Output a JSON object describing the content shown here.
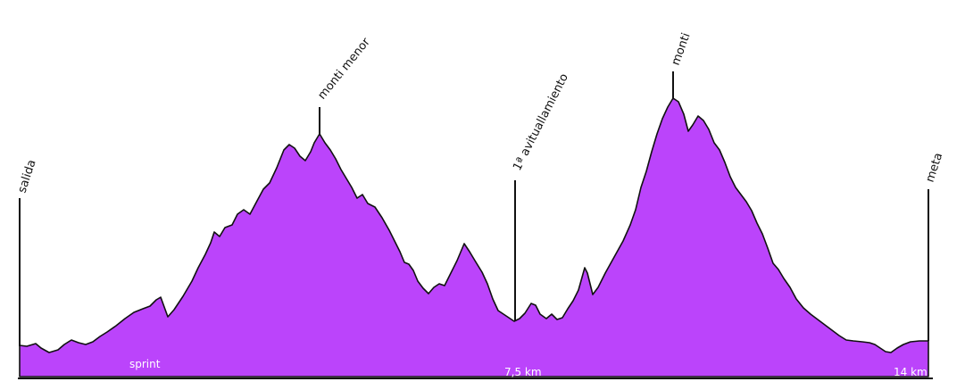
{
  "profile": {
    "fill_color": "#bb44fb",
    "outline_color": "#111111",
    "background_color": "#ffffff"
  },
  "markers": [
    {
      "id": "salida",
      "label": "salida"
    },
    {
      "id": "monti-menor",
      "label": "monti menor"
    },
    {
      "id": "avituallamiento",
      "label": "1ª avituallamiento"
    },
    {
      "id": "monti",
      "label": "monti"
    },
    {
      "id": "meta",
      "label": "meta"
    }
  ],
  "inner_labels": {
    "sprint": "sprint",
    "mid_distance": "7,5 km",
    "end_distance": "14 km"
  }
}
